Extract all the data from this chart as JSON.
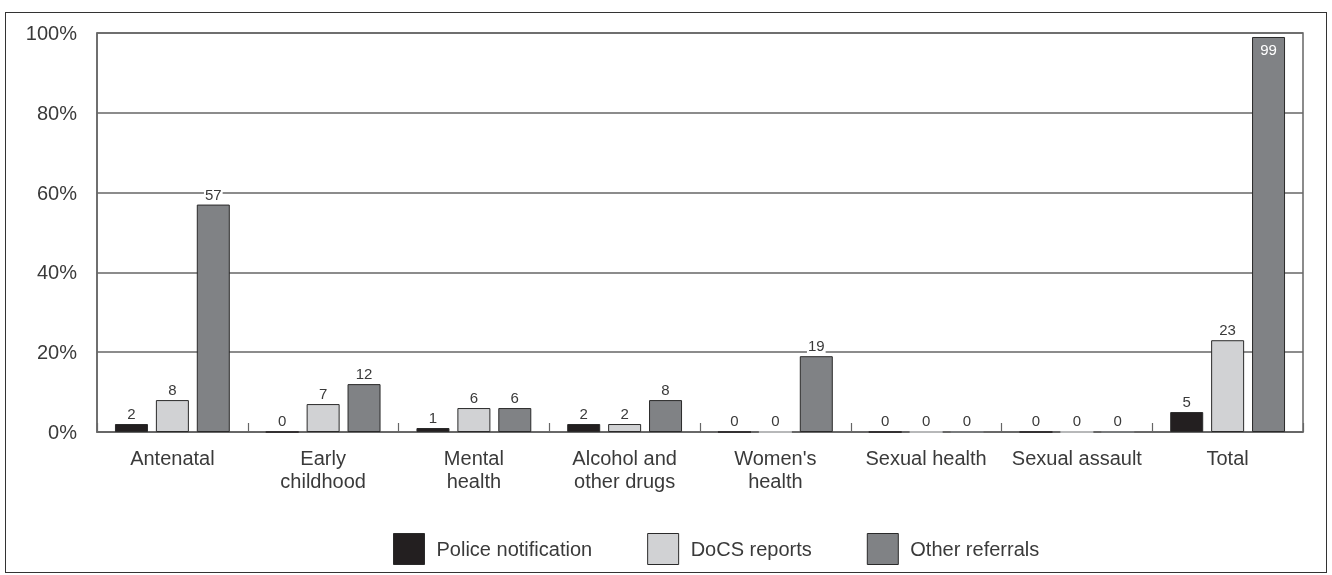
{
  "chart_data": {
    "type": "bar",
    "categories": [
      "Antenatal",
      "Early\nchildhood",
      "Mental\nhealth",
      "Alcohol and\nother drugs",
      "Women's\nhealth",
      "Sexual health",
      "Sexual assault",
      "Total"
    ],
    "series": [
      {
        "name": "Police notification",
        "color": "#231f20",
        "values": [
          2,
          0,
          1,
          2,
          0,
          0,
          0,
          5
        ]
      },
      {
        "name": "DoCS reports",
        "color": "#d1d2d4",
        "values": [
          8,
          7,
          6,
          2,
          0,
          0,
          0,
          23
        ]
      },
      {
        "name": "Other referrals",
        "color": "#808285",
        "values": [
          57,
          12,
          6,
          8,
          19,
          0,
          0,
          99
        ]
      }
    ],
    "ylim": [
      0,
      100
    ],
    "yticks": [
      {
        "value": 0,
        "label": "0%"
      },
      {
        "value": 20,
        "label": "20%"
      },
      {
        "value": 40,
        "label": "40%"
      },
      {
        "value": 60,
        "label": "60%"
      },
      {
        "value": 80,
        "label": "80%"
      },
      {
        "value": 100,
        "label": "100%"
      }
    ],
    "grid": "y",
    "legend": "bottom",
    "data_labels": true
  }
}
